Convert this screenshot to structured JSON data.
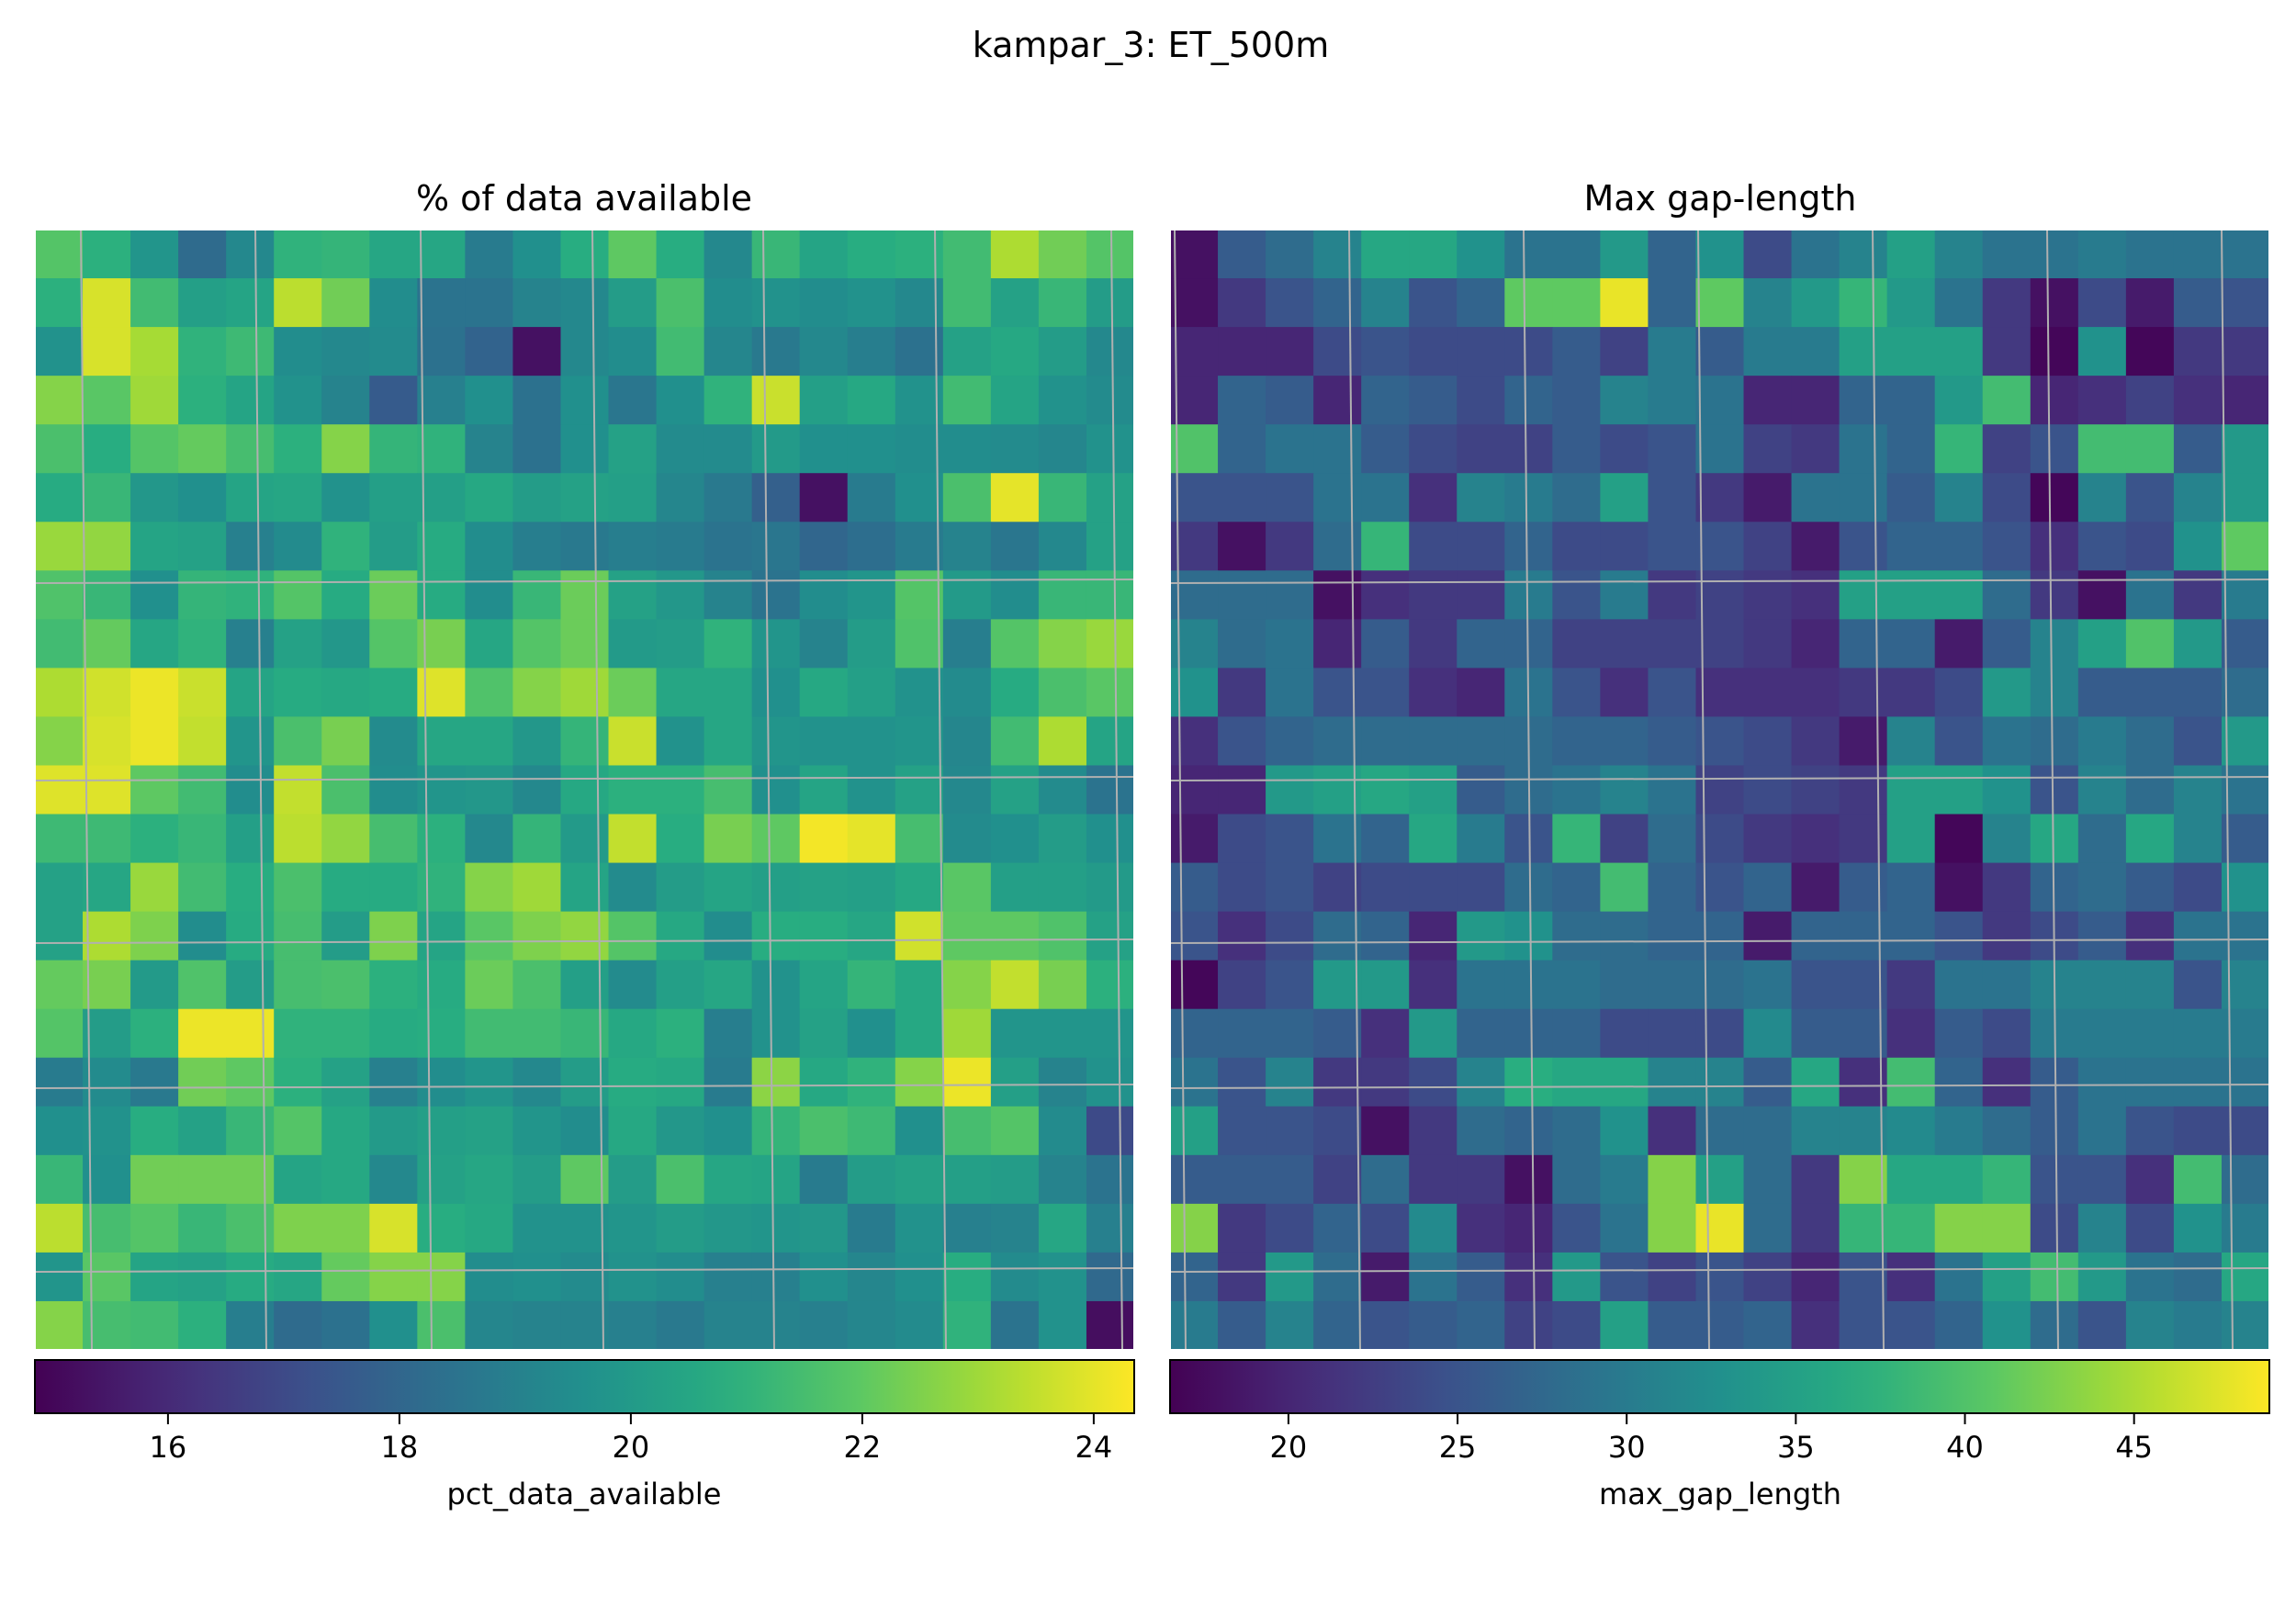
{
  "figure_title": "kampar_3: ET_500m",
  "chart_data": [
    {
      "type": "heatmap",
      "title": "% of data available",
      "colorbar_label": "pct_data_available",
      "colormap": "viridis",
      "vmin": 14.85,
      "vmax": 24.35,
      "colorbar_ticks": [
        "16",
        "18",
        "20",
        "22",
        "24"
      ],
      "grid": true,
      "rows": 23,
      "cols": 23,
      "values": [
        [
          21.8,
          20.9,
          19.8,
          18.2,
          19.3,
          21.0,
          21.1,
          20.5,
          20.5,
          18.8,
          19.6,
          20.8,
          22.0,
          20.8,
          19.3,
          21.2,
          20.4,
          20.8,
          20.9,
          21.4,
          23.2,
          22.3,
          21.8
        ],
        [
          20.9,
          23.8,
          21.4,
          20.2,
          20.4,
          23.4,
          22.3,
          19.5,
          18.5,
          18.5,
          19.1,
          19.3,
          20.1,
          21.6,
          19.5,
          19.7,
          19.5,
          19.7,
          19.3,
          21.4,
          20.3,
          21.2,
          20.1
        ],
        [
          19.7,
          23.8,
          23.1,
          21.0,
          21.3,
          19.5,
          19.3,
          19.4,
          18.4,
          17.9,
          15.3,
          19.3,
          19.5,
          21.4,
          19.2,
          18.7,
          19.3,
          18.9,
          18.4,
          20.3,
          20.6,
          20.1,
          19.3
        ],
        [
          22.6,
          21.9,
          23.0,
          20.9,
          20.4,
          19.7,
          19.1,
          17.6,
          19.0,
          19.6,
          18.4,
          19.6,
          18.6,
          19.6,
          21.0,
          23.6,
          20.2,
          20.6,
          19.7,
          21.4,
          20.4,
          19.7,
          19.4
        ],
        [
          21.6,
          20.8,
          21.8,
          22.1,
          21.5,
          20.9,
          22.6,
          21.1,
          21.0,
          19.1,
          18.4,
          19.6,
          20.3,
          19.4,
          19.4,
          20.0,
          19.6,
          19.6,
          19.5,
          19.5,
          19.4,
          19.2,
          19.7
        ],
        [
          20.7,
          21.2,
          19.9,
          19.6,
          20.4,
          20.5,
          19.7,
          20.2,
          20.2,
          20.6,
          20.1,
          20.3,
          20.2,
          19.2,
          18.7,
          17.8,
          15.3,
          18.8,
          19.6,
          21.6,
          24.0,
          21.2,
          20.3
        ],
        [
          22.9,
          22.8,
          20.4,
          20.3,
          19.0,
          19.4,
          21.0,
          20.1,
          20.7,
          19.5,
          18.9,
          18.7,
          18.9,
          18.8,
          18.5,
          18.6,
          18.0,
          18.3,
          18.8,
          19.1,
          18.6,
          19.3,
          20.3
        ],
        [
          21.7,
          21.2,
          19.6,
          21.1,
          21.0,
          21.8,
          20.7,
          22.2,
          20.7,
          19.5,
          21.2,
          22.2,
          20.3,
          19.9,
          19.1,
          18.5,
          19.5,
          19.8,
          21.8,
          20.0,
          19.5,
          21.2,
          21.2
        ],
        [
          21.4,
          22.1,
          20.5,
          21.0,
          19.0,
          20.3,
          19.9,
          21.8,
          22.4,
          20.5,
          21.8,
          22.2,
          20.0,
          20.1,
          21.0,
          19.8,
          19.1,
          20.1,
          21.7,
          18.9,
          21.8,
          22.6,
          22.9
        ],
        [
          23.2,
          23.7,
          24.1,
          23.6,
          20.4,
          20.7,
          20.6,
          20.7,
          23.9,
          21.7,
          22.6,
          23.0,
          22.2,
          20.5,
          20.5,
          19.6,
          20.6,
          20.2,
          19.7,
          19.4,
          20.7,
          21.6,
          21.9
        ],
        [
          22.6,
          23.8,
          24.1,
          23.5,
          19.8,
          21.6,
          22.4,
          19.4,
          20.5,
          20.5,
          19.9,
          21.1,
          23.6,
          19.7,
          20.5,
          19.8,
          19.7,
          19.7,
          19.8,
          19.2,
          21.4,
          23.2,
          20.4
        ],
        [
          23.9,
          23.9,
          22.0,
          21.4,
          19.5,
          23.5,
          21.6,
          19.5,
          19.8,
          19.9,
          19.3,
          20.6,
          20.9,
          20.9,
          21.5,
          19.6,
          20.4,
          19.7,
          20.3,
          19.3,
          20.3,
          19.4,
          18.5
        ],
        [
          21.3,
          21.3,
          20.9,
          21.2,
          20.2,
          23.4,
          22.8,
          21.5,
          20.9,
          19.3,
          21.1,
          20.0,
          23.5,
          20.8,
          22.4,
          22.0,
          24.2,
          24.0,
          21.5,
          19.4,
          19.6,
          20.1,
          19.6
        ],
        [
          20.3,
          20.5,
          22.9,
          21.4,
          20.8,
          21.6,
          20.7,
          20.7,
          21.0,
          22.6,
          23.0,
          20.4,
          19.4,
          20.1,
          20.4,
          20.2,
          20.3,
          20.2,
          20.6,
          21.9,
          20.2,
          20.2,
          20.0
        ],
        [
          20.3,
          23.2,
          22.5,
          19.5,
          20.7,
          21.5,
          20.1,
          22.5,
          20.4,
          21.9,
          22.5,
          22.8,
          21.8,
          20.6,
          19.5,
          20.8,
          20.8,
          20.5,
          23.7,
          22.0,
          22.0,
          21.7,
          20.3
        ],
        [
          22.1,
          22.4,
          20.0,
          21.7,
          20.1,
          21.5,
          21.6,
          20.9,
          20.7,
          22.2,
          21.6,
          20.2,
          19.4,
          20.2,
          20.5,
          19.7,
          20.4,
          21.1,
          20.6,
          22.6,
          23.5,
          22.4,
          20.9
        ],
        [
          21.8,
          20.1,
          20.9,
          24.1,
          24.1,
          21.0,
          21.0,
          20.7,
          20.8,
          21.4,
          21.4,
          21.2,
          20.6,
          20.9,
          18.9,
          19.7,
          20.3,
          19.6,
          20.6,
          23.0,
          19.8,
          19.8,
          19.8
        ],
        [
          18.8,
          19.4,
          18.7,
          22.3,
          22.0,
          20.9,
          20.3,
          19.0,
          19.5,
          19.8,
          19.3,
          20.1,
          20.7,
          20.6,
          18.8,
          22.7,
          20.6,
          21.0,
          22.6,
          24.1,
          20.2,
          19.1,
          19.7
        ],
        [
          19.6,
          19.7,
          20.8,
          20.3,
          21.2,
          21.8,
          20.6,
          20.0,
          20.2,
          20.3,
          19.8,
          19.5,
          20.6,
          19.9,
          19.6,
          21.1,
          21.6,
          21.3,
          19.6,
          21.5,
          21.8,
          19.4,
          17.0
        ],
        [
          21.2,
          19.6,
          22.3,
          22.3,
          22.3,
          20.4,
          20.6,
          19.3,
          20.3,
          20.5,
          20.1,
          22.0,
          20.1,
          21.6,
          20.5,
          20.4,
          18.8,
          20.1,
          20.3,
          20.2,
          20.1,
          19.1,
          18.5
        ],
        [
          23.4,
          21.5,
          21.8,
          21.2,
          21.6,
          22.5,
          22.5,
          23.8,
          20.8,
          20.6,
          19.7,
          19.7,
          19.8,
          20.1,
          19.9,
          19.8,
          19.9,
          18.8,
          19.7,
          19.0,
          19.1,
          20.5,
          19.0
        ],
        [
          19.8,
          21.9,
          20.4,
          20.3,
          20.7,
          20.5,
          22.1,
          22.6,
          22.6,
          19.5,
          19.6,
          19.4,
          19.7,
          19.5,
          19.0,
          19.0,
          19.6,
          19.2,
          19.6,
          20.8,
          19.4,
          19.7,
          18.1
        ],
        [
          22.6,
          21.5,
          21.4,
          20.9,
          18.9,
          18.2,
          18.4,
          19.6,
          21.6,
          19.2,
          19.1,
          19.1,
          19.0,
          18.7,
          19.1,
          19.1,
          19.0,
          19.2,
          19.4,
          21.0,
          18.5,
          19.7,
          15.2
        ]
      ]
    },
    {
      "type": "heatmap",
      "title": "Max gap-length",
      "colorbar_label": "max_gap_length",
      "colormap": "viridis",
      "vmin": 16.5,
      "vmax": 49.0,
      "colorbar_ticks": [
        "20",
        "25",
        "30",
        "35",
        "40",
        "45"
      ],
      "grid": true,
      "rows": 23,
      "cols": 23,
      "values": [
        [
          18,
          26,
          28,
          31,
          36,
          36,
          33,
          29,
          29,
          34,
          27,
          33,
          24,
          29,
          31,
          35,
          31,
          29,
          29,
          30,
          29,
          29,
          29
        ],
        [
          18,
          22,
          25,
          27,
          31,
          25,
          27,
          41,
          41,
          48,
          27,
          41,
          31,
          34,
          38,
          34,
          29,
          22,
          18,
          24,
          19,
          26,
          25
        ],
        [
          20,
          20,
          20,
          24,
          25,
          24,
          24,
          24,
          26,
          23,
          30,
          26,
          30,
          30,
          35,
          35,
          35,
          22,
          17,
          33,
          17,
          22,
          22
        ],
        [
          20,
          27,
          26,
          20,
          27,
          26,
          24,
          27,
          26,
          31,
          30,
          29,
          20,
          20,
          27,
          27,
          34,
          39,
          20,
          21,
          23,
          21,
          20
        ],
        [
          40,
          27,
          29,
          29,
          26,
          24,
          23,
          23,
          26,
          24,
          25,
          29,
          23,
          22,
          29,
          27,
          38,
          23,
          25,
          39,
          39,
          26,
          34
        ],
        [
          25,
          25,
          25,
          29,
          29,
          21,
          31,
          30,
          28,
          35,
          25,
          22,
          19,
          29,
          29,
          26,
          31,
          24,
          17,
          31,
          25,
          31,
          34
        ],
        [
          22,
          18,
          22,
          28,
          38,
          24,
          24,
          27,
          24,
          24,
          25,
          25,
          23,
          19,
          25,
          27,
          27,
          25,
          21,
          25,
          24,
          33,
          41
        ],
        [
          28,
          28,
          28,
          18,
          21,
          22,
          22,
          30,
          25,
          30,
          22,
          23,
          22,
          21,
          35,
          35,
          35,
          28,
          22,
          18,
          29,
          22,
          30
        ],
        [
          31,
          28,
          29,
          20,
          26,
          22,
          27,
          27,
          23,
          23,
          23,
          23,
          22,
          20,
          27,
          27,
          19,
          26,
          31,
          35,
          40,
          34,
          26
        ],
        [
          33,
          22,
          29,
          25,
          25,
          21,
          20,
          29,
          25,
          21,
          25,
          21,
          21,
          21,
          22,
          22,
          24,
          34,
          31,
          26,
          26,
          26,
          28
        ],
        [
          21,
          25,
          27,
          28,
          28,
          28,
          28,
          28,
          27,
          27,
          26,
          25,
          24,
          22,
          19,
          31,
          25,
          29,
          28,
          30,
          28,
          25,
          34
        ],
        [
          20,
          20,
          34,
          35,
          36,
          35,
          26,
          28,
          29,
          31,
          29,
          23,
          24,
          23,
          22,
          35,
          35,
          33,
          25,
          31,
          28,
          31,
          29
        ],
        [
          19,
          24,
          25,
          29,
          27,
          36,
          30,
          25,
          38,
          23,
          28,
          24,
          22,
          21,
          22,
          35,
          17,
          31,
          36,
          28,
          36,
          31,
          26
        ],
        [
          26,
          24,
          25,
          23,
          24,
          24,
          24,
          28,
          27,
          39,
          27,
          25,
          27,
          19,
          26,
          27,
          18,
          22,
          27,
          28,
          26,
          24,
          33
        ],
        [
          25,
          21,
          24,
          28,
          27,
          20,
          34,
          33,
          28,
          28,
          27,
          27,
          19,
          27,
          27,
          27,
          25,
          22,
          24,
          26,
          21,
          29,
          29
        ],
        [
          17,
          23,
          25,
          34,
          34,
          21,
          29,
          29,
          29,
          28,
          28,
          28,
          29,
          25,
          25,
          22,
          29,
          29,
          31,
          31,
          31,
          25,
          31
        ],
        [
          27,
          27,
          27,
          26,
          21,
          34,
          27,
          27,
          27,
          24,
          24,
          24,
          32,
          26,
          26,
          21,
          26,
          24,
          30,
          30,
          30,
          30,
          30
        ],
        [
          29,
          25,
          31,
          22,
          22,
          24,
          31,
          37,
          36,
          36,
          31,
          31,
          26,
          36,
          21,
          39,
          27,
          21,
          26,
          29,
          29,
          29,
          29
        ],
        [
          35,
          25,
          25,
          24,
          18,
          22,
          28,
          27,
          28,
          33,
          21,
          28,
          28,
          31,
          31,
          32,
          30,
          28,
          26,
          29,
          25,
          24,
          24
        ],
        [
          26,
          26,
          26,
          23,
          28,
          22,
          22,
          18,
          28,
          30,
          43,
          35,
          28,
          22,
          43,
          36,
          36,
          38,
          25,
          25,
          21,
          39,
          28
        ],
        [
          43,
          22,
          24,
          27,
          24,
          32,
          21,
          20,
          25,
          29,
          43,
          48,
          28,
          22,
          38,
          38,
          43,
          43,
          24,
          31,
          24,
          33,
          30
        ],
        [
          27,
          22,
          34,
          28,
          19,
          29,
          26,
          21,
          34,
          25,
          23,
          25,
          23,
          20,
          25,
          21,
          29,
          35,
          39,
          34,
          29,
          28,
          36
        ],
        [
          30,
          26,
          31,
          27,
          25,
          26,
          27,
          23,
          24,
          35,
          26,
          26,
          27,
          21,
          25,
          25,
          27,
          33,
          28,
          25,
          31,
          30,
          31
        ]
      ]
    }
  ]
}
